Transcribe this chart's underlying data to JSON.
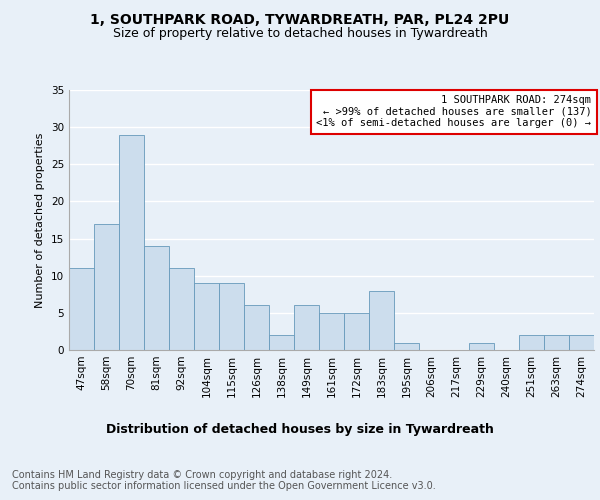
{
  "title": "1, SOUTHPARK ROAD, TYWARDREATH, PAR, PL24 2PU",
  "subtitle": "Size of property relative to detached houses in Tywardreath",
  "xlabel": "Distribution of detached houses by size in Tywardreath",
  "ylabel": "Number of detached properties",
  "categories": [
    "47sqm",
    "58sqm",
    "70sqm",
    "81sqm",
    "92sqm",
    "104sqm",
    "115sqm",
    "126sqm",
    "138sqm",
    "149sqm",
    "161sqm",
    "172sqm",
    "183sqm",
    "195sqm",
    "206sqm",
    "217sqm",
    "229sqm",
    "240sqm",
    "251sqm",
    "263sqm",
    "274sqm"
  ],
  "values": [
    11,
    17,
    29,
    14,
    11,
    9,
    9,
    6,
    2,
    6,
    5,
    5,
    8,
    1,
    0,
    0,
    1,
    0,
    2,
    2,
    2
  ],
  "bar_color": "#ccdded",
  "bar_edgecolor": "#6699bb",
  "annotation_title": "1 SOUTHPARK ROAD: 274sqm",
  "annotation_line1": "← >99% of detached houses are smaller (137)",
  "annotation_line2": "<1% of semi-detached houses are larger (0) →",
  "annotation_box_facecolor": "#ffffff",
  "annotation_box_edgecolor": "#dd0000",
  "ylim": [
    0,
    35
  ],
  "yticks": [
    0,
    5,
    10,
    15,
    20,
    25,
    30,
    35
  ],
  "footer_line1": "Contains HM Land Registry data © Crown copyright and database right 2024.",
  "footer_line2": "Contains public sector information licensed under the Open Government Licence v3.0.",
  "bg_color": "#e8f0f8",
  "title_fontsize": 10,
  "subtitle_fontsize": 9,
  "xlabel_fontsize": 9,
  "ylabel_fontsize": 8,
  "tick_fontsize": 7.5,
  "annotation_fontsize": 7.5,
  "footer_fontsize": 7
}
